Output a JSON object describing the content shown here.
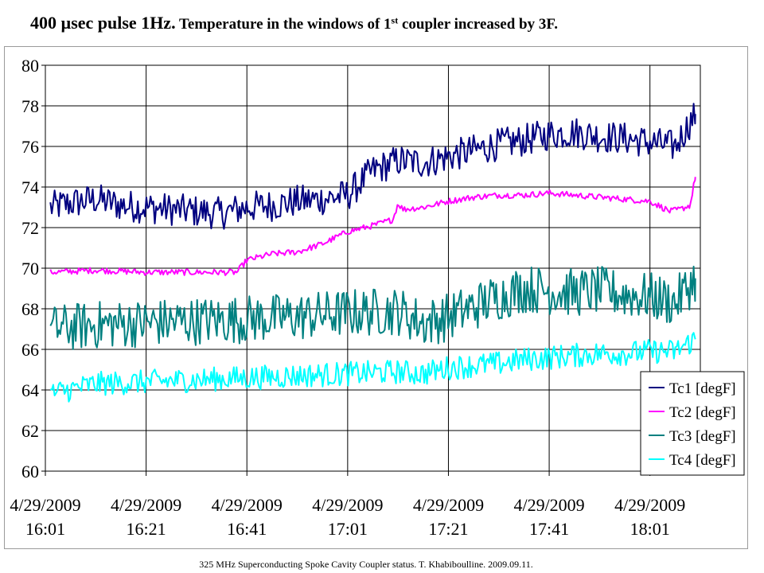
{
  "title": {
    "part1": "400 ",
    "mu": "µ",
    "part2": "sec pulse 1Hz.",
    "part3": " Temperature in the windows of 1",
    "sup": "st",
    "part4": " coupler increased by 3F."
  },
  "footer": "325 MHz Superconducting Spoke Cavity Coupler status. T. Khabiboulline. 2009.09.11.",
  "chart_data": {
    "type": "line",
    "title": "",
    "xlabel": "",
    "ylabel": "",
    "ylim": [
      60,
      80
    ],
    "yticks": [
      60,
      62,
      64,
      66,
      68,
      70,
      72,
      74,
      76,
      78,
      80
    ],
    "xlim_minutes": [
      0,
      130
    ],
    "xticks": [
      {
        "date": "4/29/2009",
        "time": "16:01",
        "minute": 0
      },
      {
        "date": "4/29/2009",
        "time": "16:21",
        "minute": 20
      },
      {
        "date": "4/29/2009",
        "time": "16:41",
        "minute": 40
      },
      {
        "date": "4/29/2009",
        "time": "17:01",
        "minute": 60
      },
      {
        "date": "4/29/2009",
        "time": "17:21",
        "minute": 80
      },
      {
        "date": "4/29/2009",
        "time": "17:41",
        "minute": 100
      },
      {
        "date": "4/29/2009",
        "time": "18:01",
        "minute": 120
      }
    ],
    "grid": true,
    "legend_position": "bottom-right",
    "series": [
      {
        "name": "Tc1 [degF]",
        "color": "#000080",
        "x": [
          1,
          5,
          10,
          15,
          20,
          25,
          30,
          35,
          40,
          45,
          50,
          55,
          60,
          65,
          70,
          75,
          80,
          85,
          90,
          95,
          100,
          105,
          110,
          115,
          120,
          125,
          129
        ],
        "values": [
          73.0,
          73.2,
          73.4,
          73.1,
          73.0,
          72.9,
          72.8,
          72.7,
          73.0,
          73.1,
          73.3,
          73.4,
          73.6,
          74.8,
          75.3,
          75.2,
          75.5,
          75.8,
          76.1,
          76.3,
          76.6,
          76.7,
          76.5,
          76.4,
          76.2,
          76.0,
          77.6
        ],
        "noise": 0.8
      },
      {
        "name": "Tc2 [degF]",
        "color": "#ff00ff",
        "x": [
          1,
          10,
          20,
          30,
          38,
          40,
          45,
          50,
          55,
          60,
          65,
          69,
          70,
          71,
          75,
          80,
          85,
          90,
          95,
          100,
          105,
          110,
          115,
          120,
          124,
          126,
          128,
          129
        ],
        "values": [
          69.8,
          69.9,
          69.8,
          69.8,
          69.8,
          70.4,
          70.7,
          70.8,
          71.2,
          71.8,
          72.1,
          72.4,
          73.2,
          72.9,
          73.0,
          73.3,
          73.5,
          73.6,
          73.6,
          73.7,
          73.6,
          73.5,
          73.4,
          73.3,
          72.8,
          72.9,
          73.1,
          74.5
        ],
        "noise": 0.15
      },
      {
        "name": "Tc3 [degF]",
        "color": "#008080",
        "x": [
          1,
          10,
          20,
          30,
          40,
          50,
          60,
          70,
          75,
          80,
          85,
          90,
          95,
          100,
          105,
          110,
          115,
          120,
          125,
          129
        ],
        "values": [
          67.0,
          67.2,
          67.3,
          67.4,
          67.5,
          67.6,
          67.8,
          67.9,
          67.3,
          67.6,
          68.1,
          68.6,
          69.0,
          68.9,
          68.8,
          68.9,
          68.7,
          68.6,
          68.3,
          69.5
        ],
        "noise": 1.2
      },
      {
        "name": "Tc4 [degF]",
        "color": "#00ffff",
        "x": [
          1,
          10,
          20,
          30,
          40,
          50,
          60,
          70,
          75,
          80,
          85,
          90,
          95,
          100,
          105,
          110,
          115,
          120,
          125,
          129
        ],
        "values": [
          63.8,
          64.3,
          64.4,
          64.5,
          64.6,
          64.7,
          64.8,
          64.9,
          64.8,
          65.1,
          65.2,
          65.3,
          65.5,
          65.6,
          65.7,
          65.8,
          65.8,
          65.9,
          65.9,
          66.5
        ],
        "noise": 0.6
      }
    ]
  }
}
